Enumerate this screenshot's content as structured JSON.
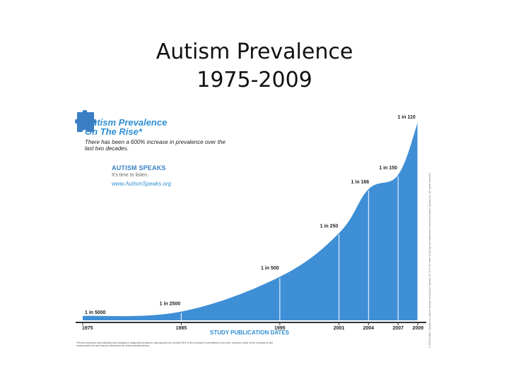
{
  "slide": {
    "title_line1": "Autism Prevalence",
    "title_line2": "1975-2009"
  },
  "infographic": {
    "title_line1": "Autism Prevalence",
    "title_line2": "On The Rise*",
    "subtitle": "There has been a 600% increase in prevalence over the last two decades.",
    "brand_name": "AUTISM SPEAKS",
    "brand_tagline": "It's time to listen.",
    "brand_url": "www.AutismSpeaks.org",
    "footnote": "*Recent research has indicated that changes in diagnostic practices may account for at least 25% of the increase in prevalence over time, however much of the increase is still unaccounted for and may be influenced by environmental factors.",
    "copyright": "© 2009 Autism Speaks Inc. Autism Speaks and Autism Speaks It's Time To Listen & Design are trademarks owned by Autism Speaks Inc. All rights reserved."
  },
  "colors": {
    "area_fill": "#3f8fd6",
    "accent_text": "#2f8fd3",
    "puzzle": "#3a7fc4",
    "axis": "#333333"
  },
  "chart_data": {
    "type": "area",
    "xlabel": "STUDY PUBLICATION DATES",
    "ylabel": "",
    "x": [
      1975,
      1985,
      1995,
      2001,
      2004,
      2007,
      2009
    ],
    "tick_labels": [
      "1975",
      "1985",
      "1995",
      "2001",
      "2004",
      "2007",
      "2009"
    ],
    "point_labels": [
      "1 in 5000",
      "1 in 2500",
      "1 in 500",
      "1 in 250",
      "1 in 166",
      "1 in 150",
      "1 in 110"
    ],
    "values_per_10000": [
      2,
      4,
      20,
      40,
      60.2,
      66.7,
      90.9
    ],
    "grid": false,
    "legend": "none"
  }
}
